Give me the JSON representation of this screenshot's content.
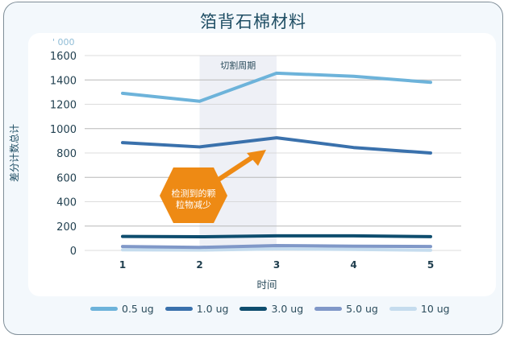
{
  "header": {
    "title": "箔背石棉材料"
  },
  "annotation": {
    "shaded_region_label": "切割周期",
    "callout_text_line1": "检测到的颗",
    "callout_text_line2": "粒物减少",
    "callout_color": "#ee8a14"
  },
  "axis_extra_label": "' 000",
  "chart_data": {
    "type": "line",
    "title": "箔背石棉材料",
    "xlabel": "时间",
    "ylabel": "差分计数总计",
    "x": [
      1,
      2,
      3,
      4,
      5
    ],
    "x_tick_labels": [
      "1",
      "2",
      "3",
      "4",
      "5"
    ],
    "y_ticks": [
      0,
      200,
      400,
      600,
      800,
      1000,
      1200,
      1400,
      1600
    ],
    "y_tick_labels": [
      "0",
      "200",
      "400",
      "600",
      "800",
      "1000",
      "1200",
      "1400",
      "1600"
    ],
    "ylim": [
      0,
      1600
    ],
    "grid": "horizontal",
    "legend_position": "bottom",
    "shaded_region": {
      "x_start": 2,
      "x_end": 3,
      "label": "切割周期"
    },
    "series": [
      {
        "name": "0.5 ug",
        "color": "#6db3da",
        "values": [
          1290,
          1225,
          1455,
          1430,
          1380
        ]
      },
      {
        "name": "1.0 ug",
        "color": "#3a71ac",
        "values": [
          885,
          850,
          925,
          845,
          800
        ]
      },
      {
        "name": "3.0 ug",
        "color": "#0e4d6e",
        "values": [
          115,
          112,
          120,
          120,
          113
        ]
      },
      {
        "name": "5.0 ug",
        "color": "#8098c8",
        "values": [
          32,
          25,
          40,
          35,
          32
        ]
      },
      {
        "name": "10 ug",
        "color": "#c5dcee",
        "values": [
          5,
          3,
          12,
          8,
          2
        ]
      }
    ]
  },
  "legend": [
    {
      "label": "0.5 ug",
      "color": "#6db3da"
    },
    {
      "label": "1.0 ug",
      "color": "#3a71ac"
    },
    {
      "label": "3.0 ug",
      "color": "#0e4d6e"
    },
    {
      "label": "5.0 ug",
      "color": "#8098c8"
    },
    {
      "label": "10 ug",
      "color": "#c5dcee"
    }
  ]
}
